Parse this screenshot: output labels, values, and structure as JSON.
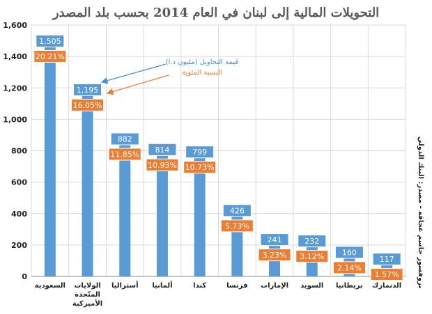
{
  "chart_data": {
    "type": "bar",
    "title": "التحويلات المالية إلى لبنان في العام 2014 بحسب بلد المصدر",
    "categories": [
      "السعودية",
      "الولايات المتّحدة الأميركية",
      "أستراليا",
      "ألمانيا",
      "كندا",
      "فرنسا",
      "الإمارات",
      "السويد",
      "بريطانيا",
      "الدنمارك"
    ],
    "category_lines": [
      [
        "السعودية"
      ],
      [
        "الولايات",
        "المتّحدة",
        "الأميركية"
      ],
      [
        "أستراليا"
      ],
      [
        "ألمانيا"
      ],
      [
        "كندا"
      ],
      [
        "فرنسا"
      ],
      [
        "الإمارات"
      ],
      [
        "السويد"
      ],
      [
        "بريطانيا"
      ],
      [
        "الدنمارك"
      ]
    ],
    "values": [
      1505,
      1195,
      882,
      814,
      799,
      426,
      241,
      232,
      160,
      117
    ],
    "value_labels": [
      "1,505",
      "1,195",
      "882",
      "814",
      "799",
      "426",
      "241",
      "232",
      "160",
      "117"
    ],
    "percent_labels": [
      "20.21%",
      "16.05%",
      "11.85%",
      "10.93%",
      "10.73%",
      "5.73%",
      "3.23%",
      "3.12%",
      "2.14%",
      "1.57%"
    ],
    "ylim": [
      0,
      1600
    ],
    "yticks": [
      0,
      200,
      400,
      600,
      800,
      1000,
      1200,
      1400,
      1600
    ],
    "ytick_labels": [
      "0",
      "200",
      "400",
      "600",
      "800",
      "1,000",
      "1,200",
      "1,400",
      "1,600"
    ],
    "grid": true,
    "annotations": {
      "value_legend": "قيمة التحاويل (مليون د.ا)",
      "percent_legend": "النسبة المئوية"
    },
    "source_note": "بروفسور جاسم عجاقة - مصدر: البنك الدولي",
    "colors": {
      "bar": "#5b9bd5",
      "value_box": "#5b9bd5",
      "value_box_border": "#ffffff",
      "percent_box": "#ed7d31",
      "grid": "#d9d9d9",
      "axis": "#888888"
    }
  }
}
